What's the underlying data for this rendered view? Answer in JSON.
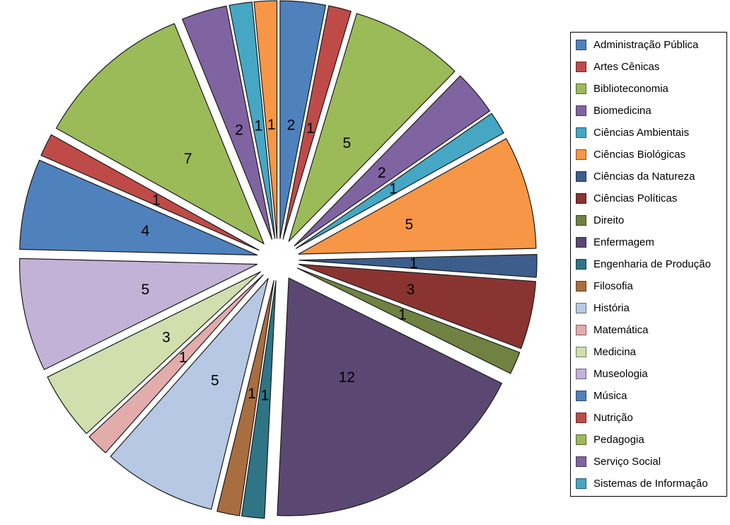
{
  "chart_data": {
    "type": "pie",
    "style": "exploded",
    "title": "",
    "total": 65,
    "data_labels": "values-inside",
    "legend_position": "right",
    "legend_visible_entries": 21,
    "slices": [
      {
        "label": "Administração Pública",
        "value": 2,
        "color": "#4F81BD",
        "in_legend": true
      },
      {
        "label": "Artes Cênicas",
        "value": 1,
        "color": "#BE4B48",
        "in_legend": true
      },
      {
        "label": "Biblioteconomia",
        "value": 5,
        "color": "#9BBB59",
        "in_legend": true
      },
      {
        "label": "Biomedicina",
        "value": 2,
        "color": "#8064A2",
        "in_legend": true
      },
      {
        "label": "Ciências Ambientais",
        "value": 1,
        "color": "#45A7C4",
        "in_legend": true
      },
      {
        "label": "Ciências Biológicas",
        "value": 5,
        "color": "#F79646",
        "in_legend": true
      },
      {
        "label": "Ciências da Natureza",
        "value": 1,
        "color": "#3D5E8B",
        "in_legend": true
      },
      {
        "label": "Ciências Políticas",
        "value": 3,
        "color": "#8A3432",
        "in_legend": true
      },
      {
        "label": "Direito",
        "value": 1,
        "color": "#708241",
        "in_legend": true
      },
      {
        "label": "Enfermagem",
        "value": 12,
        "color": "#5B4872",
        "in_legend": true
      },
      {
        "label": "Engenharia de Produção",
        "value": 1,
        "color": "#2F7585",
        "in_legend": true
      },
      {
        "label": "Filosofia",
        "value": 1,
        "color": "#A96E3F",
        "in_legend": true
      },
      {
        "label": "História",
        "value": 5,
        "color": "#B6C8E4",
        "in_legend": true
      },
      {
        "label": "Matemática",
        "value": 1,
        "color": "#E2ACAB",
        "in_legend": true
      },
      {
        "label": "Medicina",
        "value": 3,
        "color": "#D0DFAD",
        "in_legend": true
      },
      {
        "label": "Museologia",
        "value": 5,
        "color": "#C3B2D7",
        "in_legend": true
      },
      {
        "label": "Música",
        "value": 4,
        "color": "#4F81BD",
        "in_legend": true
      },
      {
        "label": "Nutrição",
        "value": 1,
        "color": "#BE4B48",
        "in_legend": true
      },
      {
        "label": "Pedagogia",
        "value": 7,
        "color": "#9BBB59",
        "in_legend": true
      },
      {
        "label": "Serviço Social",
        "value": 2,
        "color": "#8064A2",
        "in_legend": true
      },
      {
        "label": "Sistemas de Informação",
        "value": 1,
        "color": "#45A7C4",
        "in_legend": true
      },
      {
        "label": "",
        "value": 1,
        "color": "#F79646",
        "in_legend": false
      }
    ]
  }
}
